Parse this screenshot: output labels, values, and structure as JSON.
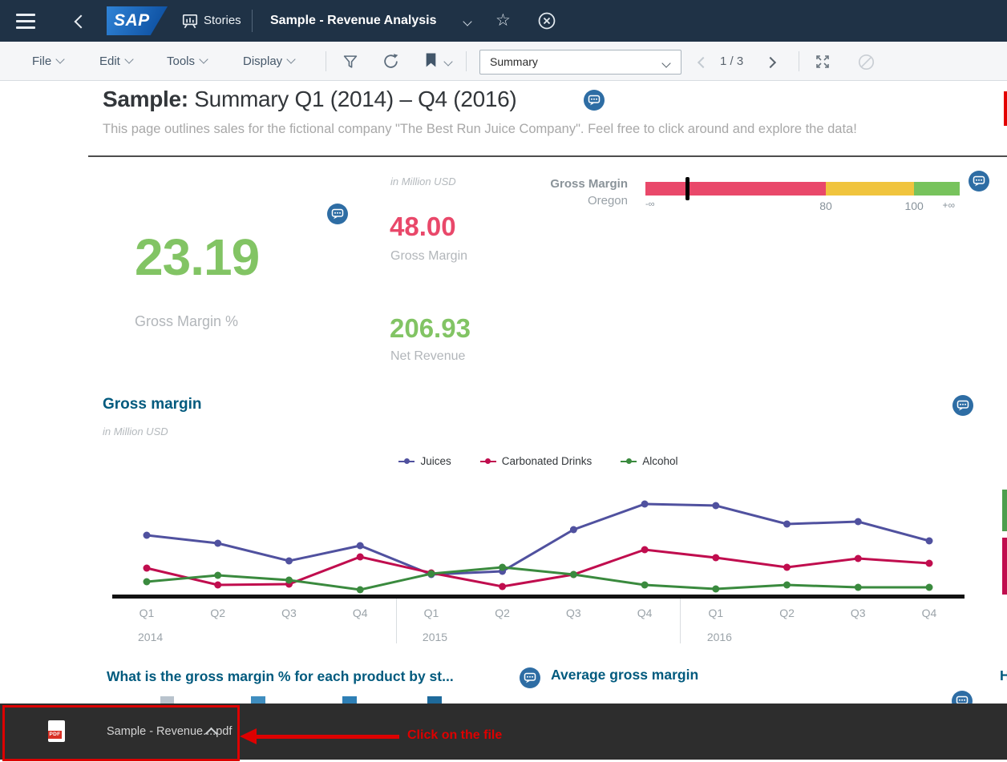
{
  "topbar": {
    "product_logo": "SAP",
    "nav_section": "Stories",
    "document_title": "Sample - Revenue Analysis"
  },
  "toolbar": {
    "menus": [
      {
        "label": "File"
      },
      {
        "label": "Edit"
      },
      {
        "label": "Tools"
      },
      {
        "label": "Display"
      }
    ],
    "page_dropdown_value": "Summary",
    "pagination": "1 / 3"
  },
  "page_header": {
    "title_bold": "Sample:",
    "title_rest": " Summary Q1 (2014) – Q4 (2016)",
    "subtitle": "This page outlines sales for the fictional company \"The Best Run Juice Company\". Feel free to click around and explore the data!"
  },
  "kpis": {
    "unit_note": "in Million USD",
    "primary": {
      "value": "23.19",
      "label": "Gross Margin %",
      "color": "#82c464"
    },
    "secondary": [
      {
        "value": "48.00",
        "label": "Gross Margin",
        "color": "#e9486a"
      },
      {
        "value": "206.93",
        "label": "Net Revenue",
        "color": "#82c464"
      }
    ]
  },
  "gauge": {
    "title": "Gross Margin",
    "subtitle": "Oregon",
    "segments": [
      {
        "color": "#e9486a",
        "pct": 57.4
      },
      {
        "color": "#f0c43e",
        "pct": 28.1
      },
      {
        "color": "#77c35c",
        "pct": 14.5
      }
    ],
    "marker_pct": 13.3,
    "ticks": [
      {
        "label": "-∞",
        "pct": 0,
        "align": "left",
        "size": 11
      },
      {
        "label": "80",
        "pct": 57.4,
        "align": "center",
        "size": 14
      },
      {
        "label": "100",
        "pct": 85.5,
        "align": "center",
        "size": 14
      },
      {
        "label": "+∞",
        "pct": 96.5,
        "align": "center",
        "size": 12
      }
    ]
  },
  "chart_section": {
    "title": "Gross margin",
    "unit_note": "in Million USD"
  },
  "chart_data": {
    "type": "line",
    "title": "Gross margin",
    "unit": "Million USD (values estimated from pixel positions; no y-axis shown)",
    "legend_position": "top-center",
    "y_axis_visible": false,
    "ylim": [
      0,
      13
    ],
    "x_quarters": [
      "Q1",
      "Q2",
      "Q3",
      "Q4",
      "Q1",
      "Q2",
      "Q3",
      "Q4",
      "Q1",
      "Q2",
      "Q3",
      "Q4"
    ],
    "x_years": [
      {
        "label": "2014",
        "index": 0
      },
      {
        "label": "2015",
        "index": 4
      },
      {
        "label": "2016",
        "index": 8
      }
    ],
    "series": [
      {
        "name": "Juices",
        "color": "#50519f",
        "values": [
          7.7,
          6.7,
          4.5,
          6.4,
          2.8,
          3.2,
          8.4,
          11.6,
          11.4,
          9.1,
          9.4,
          7.0
        ]
      },
      {
        "name": "Carbonated Drinks",
        "color": "#c00d4e",
        "values": [
          3.6,
          1.5,
          1.6,
          5.0,
          3.0,
          1.3,
          2.8,
          5.9,
          4.9,
          3.7,
          4.8,
          4.2
        ]
      },
      {
        "name": "Alcohol",
        "color": "#3a8a3e",
        "values": [
          1.9,
          2.7,
          2.1,
          0.9,
          2.9,
          3.7,
          2.8,
          1.5,
          1.0,
          1.5,
          1.2,
          1.2
        ]
      }
    ]
  },
  "questions": {
    "left_title": "What is the gross margin % for each product by st...",
    "right_title": "Average gross margin",
    "far_right_clipped": "H"
  },
  "download_shelf": {
    "filename": "Sample - Revenue....pdf",
    "pdf_badge": "PDF",
    "annotation_text": "Click on the file"
  },
  "colors": {
    "topbar_bg": "#1f3246",
    "menubar_bg": "#f5f6f8",
    "accent_teal": "#015a7e",
    "kpi_green": "#82c464",
    "kpi_red": "#e9486a",
    "gauge_yellow": "#f0c43e",
    "annotation_red": "#dd0000",
    "shelf_bg": "#2d2d2d",
    "edge_fragment_green": "#4d9e4d",
    "edge_fragment_crimson": "#c00d4e",
    "edge_red_line": "#e30000"
  }
}
